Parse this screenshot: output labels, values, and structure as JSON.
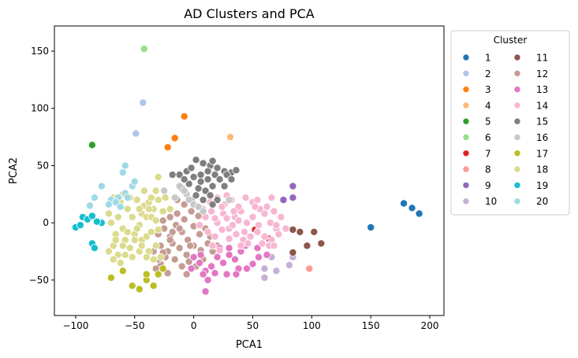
{
  "chart_data": {
    "type": "scatter",
    "title": "AD Clusters and PCA",
    "xlabel": "PCA1",
    "ylabel": "PCA2",
    "xlim": [
      -118,
      212
    ],
    "ylim": [
      -81,
      172
    ],
    "xticks": [
      -100,
      -50,
      0,
      50,
      100,
      150,
      200
    ],
    "yticks": [
      -50,
      0,
      50,
      100,
      150
    ],
    "grid": false,
    "legend": {
      "title": "Cluster",
      "placement": "outside-right",
      "columns": 2
    },
    "series": [
      {
        "name": "1",
        "color": "#1f77b4",
        "points": [
          [
            150,
            -4
          ],
          [
            178,
            17
          ],
          [
            185,
            13
          ],
          [
            191,
            8
          ]
        ]
      },
      {
        "name": "2",
        "color": "#aec7e8",
        "points": [
          [
            -43,
            105
          ],
          [
            -49,
            78
          ]
        ]
      },
      {
        "name": "3",
        "color": "#ff7f0e",
        "points": [
          [
            -8,
            93
          ],
          [
            -16,
            74
          ],
          [
            -22,
            66
          ]
        ]
      },
      {
        "name": "4",
        "color": "#ffbb78",
        "points": [
          [
            31,
            75
          ]
        ]
      },
      {
        "name": "5",
        "color": "#2ca02c",
        "points": [
          [
            -86,
            68
          ]
        ]
      },
      {
        "name": "6",
        "color": "#98df8a",
        "points": [
          [
            -42,
            152
          ]
        ]
      },
      {
        "name": "7",
        "color": "#d62728",
        "points": [
          [
            52,
            -6
          ],
          [
            64,
            -14
          ]
        ]
      },
      {
        "name": "8",
        "color": "#ff9896",
        "points": [
          [
            98,
            -40
          ]
        ]
      },
      {
        "name": "9",
        "color": "#9467bd",
        "points": [
          [
            76,
            20
          ],
          [
            84,
            32
          ],
          [
            84,
            22
          ]
        ]
      },
      {
        "name": "10",
        "color": "#c5b0d5",
        "points": [
          [
            60,
            -48
          ],
          [
            70,
            -42
          ],
          [
            81,
            -37
          ],
          [
            84,
            -30
          ],
          [
            60,
            -40
          ],
          [
            66,
            -30
          ]
        ]
      },
      {
        "name": "11",
        "color": "#8c564b",
        "points": [
          [
            84,
            -6
          ],
          [
            90,
            -8
          ],
          [
            102,
            -8
          ],
          [
            108,
            -18
          ],
          [
            96,
            -20
          ],
          [
            84,
            -26
          ]
        ]
      },
      {
        "name": "12",
        "color": "#c49c94",
        "points": [
          [
            -30,
            -10
          ],
          [
            -25,
            -5
          ],
          [
            -20,
            -12
          ],
          [
            -15,
            -2
          ],
          [
            -10,
            -8
          ],
          [
            -5,
            -15
          ],
          [
            0,
            -3
          ],
          [
            5,
            -10
          ],
          [
            10,
            -5
          ],
          [
            -28,
            -20
          ],
          [
            -22,
            -25
          ],
          [
            -18,
            -18
          ],
          [
            -12,
            -22
          ],
          [
            -6,
            -28
          ],
          [
            0,
            -20
          ],
          [
            6,
            -24
          ],
          [
            12,
            -18
          ],
          [
            -26,
            2
          ],
          [
            -20,
            5
          ],
          [
            -14,
            8
          ],
          [
            -8,
            3
          ],
          [
            -2,
            10
          ],
          [
            4,
            6
          ],
          [
            -16,
            -32
          ],
          [
            -10,
            -38
          ],
          [
            -4,
            -34
          ],
          [
            2,
            -38
          ],
          [
            8,
            -32
          ],
          [
            -24,
            -30
          ],
          [
            -28,
            -36
          ],
          [
            -22,
            -44
          ],
          [
            -32,
            -40
          ],
          [
            -6,
            -45
          ],
          [
            -12,
            -5
          ],
          [
            -3,
            -20
          ],
          [
            -18,
            -8
          ],
          [
            14,
            -12
          ],
          [
            16,
            -25
          ],
          [
            20,
            -20
          ],
          [
            -8,
            16
          ],
          [
            -2,
            20
          ],
          [
            -14,
            20
          ],
          [
            -20,
            -15
          ],
          [
            -26,
            -26
          ],
          [
            -34,
            -25
          ],
          [
            -30,
            -32
          ]
        ]
      },
      {
        "name": "13",
        "color": "#e377c2",
        "points": [
          [
            0,
            -30
          ],
          [
            5,
            -35
          ],
          [
            10,
            -42
          ],
          [
            15,
            -38
          ],
          [
            20,
            -30
          ],
          [
            25,
            -35
          ],
          [
            30,
            -28
          ],
          [
            35,
            -32
          ],
          [
            40,
            -25
          ],
          [
            45,
            -40
          ],
          [
            50,
            -36
          ],
          [
            55,
            -30
          ],
          [
            38,
            -40
          ],
          [
            28,
            -45
          ],
          [
            18,
            -44
          ],
          [
            8,
            -45
          ],
          [
            12,
            -50
          ],
          [
            -2,
            -40
          ],
          [
            6,
            -28
          ],
          [
            22,
            -22
          ],
          [
            44,
            -20
          ],
          [
            54,
            -22
          ],
          [
            62,
            -28
          ],
          [
            10,
            -60
          ],
          [
            30,
            -22
          ],
          [
            36,
            -45
          ]
        ]
      },
      {
        "name": "14",
        "color": "#f7b6d2",
        "points": [
          [
            10,
            5
          ],
          [
            15,
            10
          ],
          [
            20,
            0
          ],
          [
            25,
            8
          ],
          [
            30,
            -5
          ],
          [
            35,
            5
          ],
          [
            40,
            10
          ],
          [
            45,
            0
          ],
          [
            50,
            5
          ],
          [
            55,
            -2
          ],
          [
            60,
            8
          ],
          [
            65,
            0
          ],
          [
            70,
            -5
          ],
          [
            12,
            -8
          ],
          [
            18,
            -12
          ],
          [
            24,
            -6
          ],
          [
            30,
            -14
          ],
          [
            36,
            -10
          ],
          [
            42,
            -15
          ],
          [
            48,
            -12
          ],
          [
            54,
            -8
          ],
          [
            60,
            -12
          ],
          [
            66,
            -15
          ],
          [
            72,
            -10
          ],
          [
            14,
            18
          ],
          [
            20,
            22
          ],
          [
            26,
            16
          ],
          [
            32,
            20
          ],
          [
            38,
            14
          ],
          [
            44,
            22
          ],
          [
            50,
            18
          ],
          [
            56,
            12
          ],
          [
            62,
            14
          ],
          [
            68,
            10
          ],
          [
            74,
            5
          ],
          [
            5,
            -2
          ],
          [
            8,
            12
          ],
          [
            16,
            -20
          ],
          [
            22,
            -24
          ],
          [
            28,
            24
          ],
          [
            40,
            -20
          ],
          [
            46,
            -18
          ],
          [
            58,
            -18
          ],
          [
            64,
            -20
          ],
          [
            68,
            -20
          ],
          [
            33,
            -2
          ],
          [
            38,
            2
          ],
          [
            43,
            -8
          ],
          [
            52,
            14
          ],
          [
            28,
            4
          ],
          [
            24,
            14
          ],
          [
            18,
            4
          ],
          [
            70,
            -2
          ],
          [
            78,
            -5
          ],
          [
            54,
            20
          ],
          [
            66,
            22
          ],
          [
            34,
            10
          ]
        ]
      },
      {
        "name": "15",
        "color": "#7f7f7f",
        "points": [
          [
            2,
            55
          ],
          [
            8,
            52
          ],
          [
            14,
            50
          ],
          [
            20,
            48
          ],
          [
            26,
            45
          ],
          [
            32,
            44
          ],
          [
            18,
            42
          ],
          [
            12,
            38
          ],
          [
            6,
            36
          ],
          [
            0,
            40
          ],
          [
            -6,
            45
          ],
          [
            -12,
            42
          ],
          [
            -4,
            34
          ],
          [
            4,
            30
          ],
          [
            10,
            28
          ],
          [
            16,
            32
          ],
          [
            22,
            38
          ],
          [
            28,
            42
          ],
          [
            36,
            46
          ],
          [
            14,
            24
          ],
          [
            8,
            20
          ],
          [
            -10,
            30
          ],
          [
            2,
            24
          ],
          [
            32,
            38
          ],
          [
            16,
            54
          ],
          [
            -18,
            42
          ],
          [
            20,
            20
          ],
          [
            26,
            32
          ],
          [
            6,
            42
          ],
          [
            12,
            45
          ],
          [
            -2,
            48
          ],
          [
            -8,
            38
          ],
          [
            16,
            16
          ]
        ]
      },
      {
        "name": "16",
        "color": "#c7c7c7",
        "points": [
          [
            -25,
            28
          ],
          [
            -12,
            32
          ],
          [
            -6,
            25
          ],
          [
            -4,
            20
          ],
          [
            8,
            10
          ],
          [
            0,
            16
          ],
          [
            -16,
            22
          ],
          [
            30,
            20
          ],
          [
            -8,
            28
          ],
          [
            4,
            14
          ]
        ]
      },
      {
        "name": "17",
        "color": "#bcbd22",
        "points": [
          [
            -70,
            -48
          ],
          [
            -60,
            -42
          ],
          [
            -52,
            -55
          ],
          [
            -46,
            -58
          ],
          [
            -40,
            -50
          ],
          [
            -34,
            -55
          ],
          [
            -30,
            -45
          ],
          [
            -26,
            -40
          ],
          [
            -40,
            -45
          ]
        ]
      },
      {
        "name": "18",
        "color": "#dbdb8d",
        "points": [
          [
            -72,
            -25
          ],
          [
            -68,
            -20
          ],
          [
            -66,
            -10
          ],
          [
            -70,
            0
          ],
          [
            -72,
            8
          ],
          [
            -64,
            5
          ],
          [
            -60,
            -5
          ],
          [
            -58,
            -15
          ],
          [
            -54,
            -22
          ],
          [
            -50,
            -10
          ],
          [
            -46,
            -2
          ],
          [
            -44,
            8
          ],
          [
            -42,
            15
          ],
          [
            -38,
            18
          ],
          [
            -34,
            12
          ],
          [
            -30,
            20
          ],
          [
            -32,
            28
          ],
          [
            -36,
            22
          ],
          [
            -40,
            5
          ],
          [
            -48,
            -5
          ],
          [
            -52,
            5
          ],
          [
            -56,
            12
          ],
          [
            -62,
            18
          ],
          [
            -68,
            22
          ],
          [
            -48,
            20
          ],
          [
            -44,
            -15
          ],
          [
            -38,
            -25
          ],
          [
            -32,
            -20
          ],
          [
            -28,
            -30
          ],
          [
            -34,
            -32
          ],
          [
            -40,
            -12
          ],
          [
            -30,
            -6
          ],
          [
            -26,
            10
          ],
          [
            -24,
            22
          ],
          [
            -20,
            12
          ],
          [
            -46,
            -25
          ],
          [
            -40,
            -30
          ],
          [
            -52,
            -30
          ],
          [
            -58,
            -28
          ],
          [
            -64,
            -28
          ],
          [
            -68,
            -32
          ],
          [
            -62,
            -35
          ],
          [
            -36,
            5
          ],
          [
            -46,
            12
          ],
          [
            -50,
            -15
          ],
          [
            -56,
            -8
          ],
          [
            -60,
            25
          ],
          [
            -54,
            22
          ],
          [
            -42,
            28
          ],
          [
            -38,
            12
          ],
          [
            -30,
            40
          ],
          [
            -44,
            -20
          ],
          [
            -60,
            -20
          ],
          [
            -66,
            -15
          ],
          [
            -36,
            -8
          ],
          [
            -32,
            2
          ]
        ]
      },
      {
        "name": "19",
        "color": "#17becf",
        "points": [
          [
            -100,
            -4
          ],
          [
            -96,
            -2
          ],
          [
            -94,
            5
          ],
          [
            -90,
            3
          ],
          [
            -86,
            6
          ],
          [
            -86,
            -18
          ],
          [
            -84,
            -22
          ],
          [
            -78,
            0
          ],
          [
            -82,
            1
          ]
        ]
      },
      {
        "name": "20",
        "color": "#9edae5",
        "points": [
          [
            -58,
            50
          ],
          [
            -60,
            44
          ],
          [
            -52,
            32
          ],
          [
            -50,
            36
          ],
          [
            -58,
            26
          ],
          [
            -64,
            22
          ],
          [
            -70,
            20
          ],
          [
            -72,
            16
          ],
          [
            -66,
            18
          ],
          [
            -78,
            32
          ],
          [
            -84,
            22
          ],
          [
            -88,
            15
          ],
          [
            -56,
            22
          ],
          [
            -62,
            14
          ]
        ]
      }
    ]
  }
}
